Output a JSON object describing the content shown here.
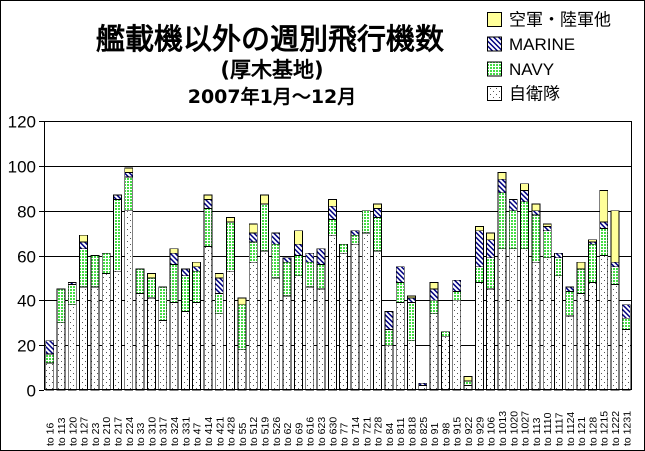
{
  "chart_data": {
    "type": "bar",
    "stacked": true,
    "title": "艦載機以外の週別飛行機数",
    "subtitle": [
      "(厚木基地)",
      "2007年1月～12月"
    ],
    "ylim": [
      0,
      120
    ],
    "yticks": [
      0,
      20,
      40,
      60,
      80,
      100,
      120
    ],
    "grid": true,
    "legend": "top-right",
    "categories": [
      "to 16",
      "to 113",
      "to 120",
      "to 127",
      "to 23",
      "to 210",
      "to 217",
      "to 224",
      "to 33",
      "to 310",
      "to 317",
      "to 324",
      "to 331",
      "to 47",
      "to 414",
      "to 421",
      "to 428",
      "to 55",
      "to 512",
      "to 519",
      "to 526",
      "to 62",
      "to 69",
      "to 616",
      "to 623",
      "to 630",
      "to 77",
      "to 714",
      "to 721",
      "to 728",
      "to 84",
      "to 811",
      "to 818",
      "to 825",
      "to 91",
      "to 98",
      "to 915",
      "to 922",
      "to 929",
      "to 106",
      "to 1013",
      "to 1020",
      "to 1027",
      "to 113",
      "to 1110",
      "to 1117",
      "to 1124",
      "to 121",
      "to 128",
      "to 1215",
      "to 1222",
      "to 1231"
    ],
    "series": [
      {
        "name": "自衛隊",
        "color": "#ffffff",
        "pattern": "dots",
        "values": [
          12,
          30,
          38,
          46,
          46,
          52,
          53,
          80,
          43,
          41,
          31,
          39,
          35,
          39,
          64,
          34,
          53,
          18,
          57,
          62,
          50,
          42,
          51,
          46,
          45,
          69,
          61,
          65,
          70,
          62,
          20,
          39,
          22,
          2,
          34,
          24,
          40,
          2,
          48,
          45,
          63,
          63,
          63,
          57,
          59,
          51,
          33,
          43,
          48,
          60,
          47,
          27
        ]
      },
      {
        "name": "NAVY",
        "color": "#44dd44",
        "pattern": "grid",
        "values": [
          4,
          15,
          9,
          17,
          14,
          9,
          32,
          15,
          11,
          9,
          15,
          17,
          16,
          14,
          17,
          9,
          22,
          20,
          9,
          21,
          15,
          15,
          9,
          11,
          11,
          7,
          4,
          4,
          10,
          15,
          7,
          9,
          17,
          0,
          6,
          2,
          4,
          2,
          7,
          14,
          25,
          17,
          21,
          21,
          12,
          8,
          11,
          11,
          17,
          12,
          8,
          5
        ]
      },
      {
        "name": "MARINE",
        "color": "#000080",
        "pattern": "diagonal-hatch",
        "values": [
          6,
          0,
          1,
          3,
          0,
          0,
          2,
          2,
          0,
          0,
          0,
          5,
          3,
          2,
          4,
          7,
          0,
          0,
          4,
          0,
          5,
          2,
          5,
          4,
          7,
          6,
          0,
          2,
          0,
          4,
          8,
          7,
          2,
          1,
          5,
          0,
          5,
          0,
          16,
          8,
          6,
          5,
          5,
          2,
          2,
          2,
          2,
          0,
          1,
          3,
          2,
          6
        ]
      },
      {
        "name": "空軍・陸軍他",
        "color": "#ffff99",
        "pattern": "solid",
        "values": [
          0,
          0,
          0,
          3,
          0,
          0,
          0,
          2,
          0,
          2,
          0,
          2,
          0,
          2,
          2,
          2,
          2,
          3,
          4,
          4,
          0,
          0,
          6,
          0,
          0,
          3,
          0,
          0,
          0,
          2,
          0,
          0,
          1,
          0,
          3,
          0,
          0,
          2,
          2,
          3,
          3,
          0,
          3,
          3,
          1,
          0,
          0,
          3,
          1,
          14,
          23,
          0
        ]
      }
    ]
  }
}
